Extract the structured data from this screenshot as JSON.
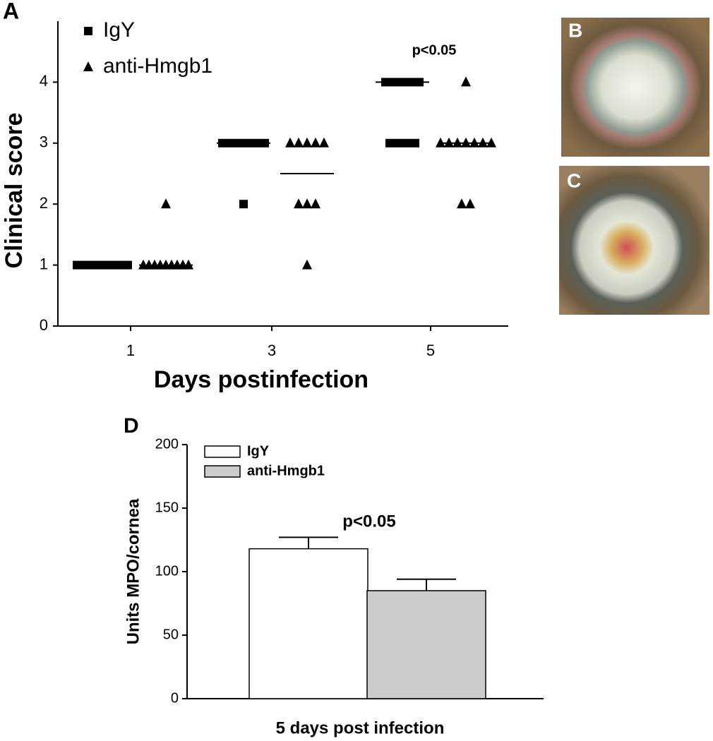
{
  "chart_data": [
    {
      "type": "dotplot",
      "panel_label": "A",
      "y_label": "Clinical score",
      "x_label": "Days postinfection",
      "categories": [
        "1",
        "3",
        "5"
      ],
      "series": [
        {
          "name": "IgY",
          "marker": "square",
          "color": "#000000",
          "values": [
            [
              1,
              1,
              1,
              1,
              1,
              1,
              1,
              1,
              1,
              1
            ],
            [
              3,
              3,
              3,
              3,
              3,
              3,
              2
            ],
            [
              4,
              4,
              4,
              4,
              4,
              3,
              3,
              3,
              3
            ]
          ],
          "lines": [
            1,
            3,
            4
          ]
        },
        {
          "name": "anti-Hmgb1",
          "marker": "triangle",
          "color": "#000000",
          "values": [
            [
              2,
              1,
              1,
              1,
              1,
              1,
              1,
              1,
              1,
              1
            ],
            [
              3,
              3,
              3,
              3,
              3,
              2,
              2,
              2,
              1
            ],
            [
              4,
              3,
              3,
              3,
              3,
              3,
              3,
              3,
              2,
              2
            ]
          ],
          "lines": [
            1,
            2.5,
            3
          ]
        }
      ],
      "ylim": [
        0,
        5
      ],
      "yticks": [
        0,
        1,
        2,
        3,
        4
      ],
      "annotations": [
        {
          "category": 2,
          "text": "p<0.05"
        }
      ]
    },
    {
      "type": "bar",
      "panel_label": "D",
      "y_label": "Units MPO/cornea",
      "x_label": "5 days post infection",
      "series": [
        {
          "name": "IgY",
          "color": "#ffffff",
          "values": [
            118
          ],
          "errors": [
            9
          ]
        },
        {
          "name": "anti-Hmgb1",
          "color": "#cccccc",
          "values": [
            85
          ],
          "errors": [
            9
          ]
        }
      ],
      "ylim": [
        0,
        200
      ],
      "yticks": [
        0,
        50,
        100,
        150,
        200
      ],
      "annotations": [
        {
          "text": "p<0.05"
        }
      ]
    }
  ],
  "photos": [
    {
      "label": "B"
    },
    {
      "label": "C"
    }
  ]
}
